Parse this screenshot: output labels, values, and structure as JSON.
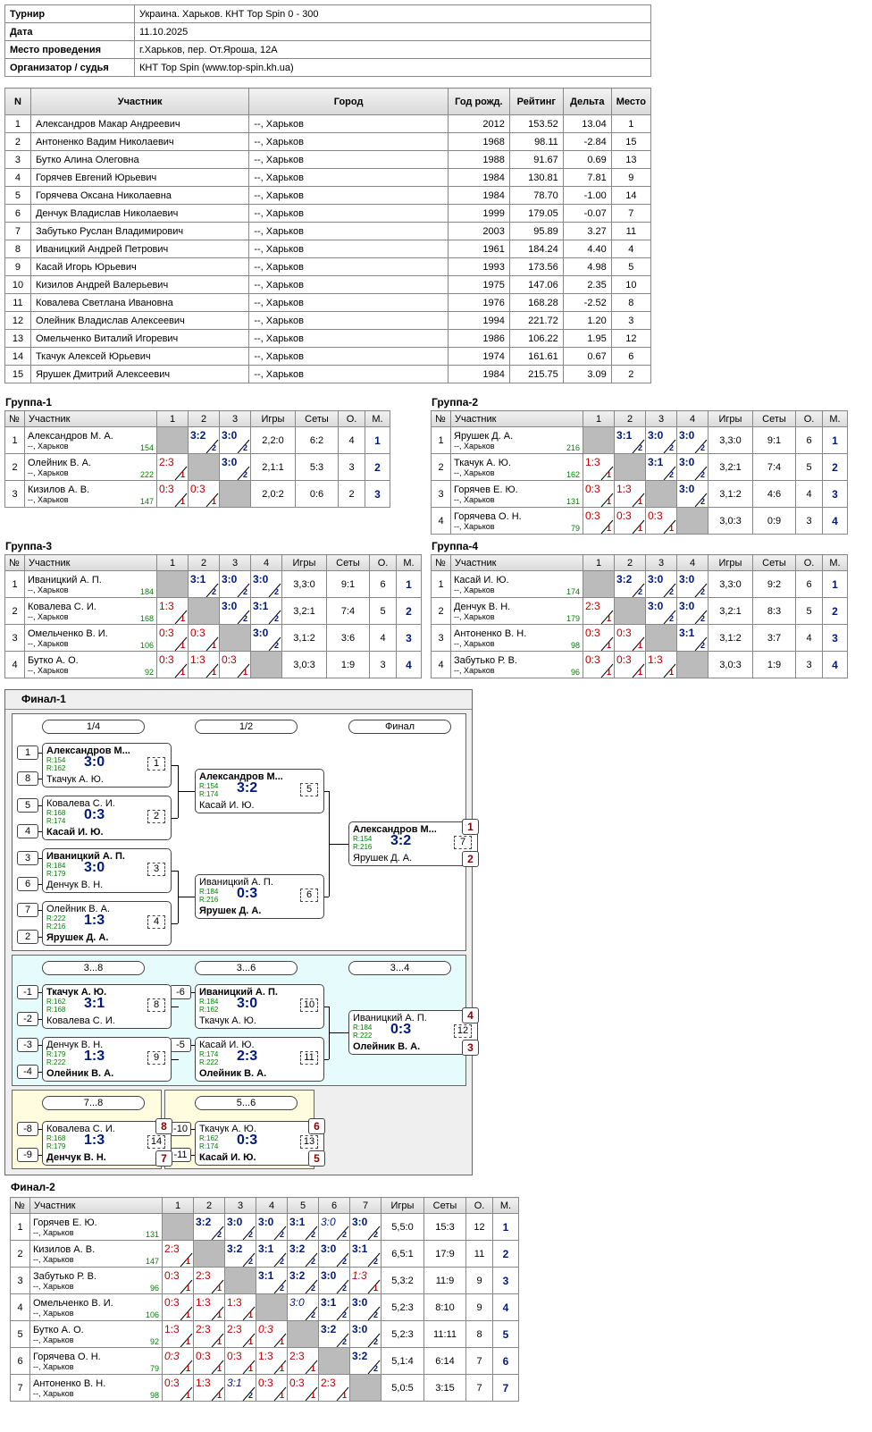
{
  "info": [
    {
      "k": "Турнир",
      "v": "Украина. Харьков. КНТ Top Spin 0 - 300"
    },
    {
      "k": "Дата",
      "v": "11.10.2025"
    },
    {
      "k": "Место проведения",
      "v": "г.Харьков, пер. От.Яроша, 12А"
    },
    {
      "k": "Организатор / судья",
      "v": "КНТ Top Spin (www.top-spin.kh.ua)"
    }
  ],
  "participants_header": [
    "N",
    "Участник",
    "Город",
    "Год рожд.",
    "Рейтинг",
    "Дельта",
    "Место"
  ],
  "participants": [
    [
      "1",
      "Александров Макар Андреевич",
      "--, Харьков",
      "2012",
      "153.52",
      "13.04",
      "1"
    ],
    [
      "2",
      "Антоненко Вадим Николаевич",
      "--, Харьков",
      "1968",
      "98.11",
      "-2.84",
      "15"
    ],
    [
      "3",
      "Бутко Алина Олеговна",
      "--, Харьков",
      "1988",
      "91.67",
      "0.69",
      "13"
    ],
    [
      "4",
      "Горячев Евгений Юрьевич",
      "--, Харьков",
      "1984",
      "130.81",
      "7.81",
      "9"
    ],
    [
      "5",
      "Горячева Оксана Николаевна",
      "--, Харьков",
      "1984",
      "78.70",
      "-1.00",
      "14"
    ],
    [
      "6",
      "Денчук Владислав Николаевич",
      "--, Харьков",
      "1999",
      "179.05",
      "-0.07",
      "7"
    ],
    [
      "7",
      "Забутько Руслан Владимирович",
      "--, Харьков",
      "2003",
      "95.89",
      "3.27",
      "11"
    ],
    [
      "8",
      "Иваницкий Андрей Петрович",
      "--, Харьков",
      "1961",
      "184.24",
      "4.40",
      "4"
    ],
    [
      "9",
      "Касай Игорь Юрьевич",
      "--, Харьков",
      "1993",
      "173.56",
      "4.98",
      "5"
    ],
    [
      "10",
      "Кизилов Андрей Валерьевич",
      "--, Харьков",
      "1975",
      "147.06",
      "2.35",
      "10"
    ],
    [
      "11",
      "Ковалева Светлана Ивановна",
      "--, Харьков",
      "1976",
      "168.28",
      "-2.52",
      "8"
    ],
    [
      "12",
      "Олейник Владислав Алексеевич",
      "--, Харьков",
      "1994",
      "221.72",
      "1.20",
      "3"
    ],
    [
      "13",
      "Омельченко Виталий Игоревич",
      "--, Харьков",
      "1986",
      "106.22",
      "1.95",
      "12"
    ],
    [
      "14",
      "Ткачук Алексей Юрьевич",
      "--, Харьков",
      "1974",
      "161.61",
      "0.67",
      "6"
    ],
    [
      "15",
      "Ярушек Дмитрий Алексеевич",
      "--, Харьков",
      "1984",
      "215.75",
      "3.09",
      "2"
    ]
  ],
  "group_header": {
    "n": "№",
    "p": "Участник",
    "games": "Игры",
    "sets": "Сеты",
    "o": "О.",
    "m": "М."
  },
  "groups": [
    {
      "title": "Группа-1",
      "players": [
        {
          "n": "1",
          "name": "Александров М. А.",
          "city": "--, Харьков",
          "rating": "154",
          "scores": [
            "x",
            "3:2/2",
            "3:0/2"
          ],
          "games": "2,2:0",
          "sets": "6:2",
          "o": "4",
          "m": "1"
        },
        {
          "n": "2",
          "name": "Олейник В. А.",
          "city": "--, Харьков",
          "rating": "222",
          "scores": [
            "2:3/1",
            "x",
            "3:0/2"
          ],
          "games": "2,1:1",
          "sets": "5:3",
          "o": "3",
          "m": "2"
        },
        {
          "n": "3",
          "name": "Кизилов А. В.",
          "city": "--, Харьков",
          "rating": "147",
          "scores": [
            "0:3/1",
            "0:3/1",
            "x"
          ],
          "games": "2,0:2",
          "sets": "0:6",
          "o": "2",
          "m": "3"
        }
      ]
    },
    {
      "title": "Группа-2",
      "players": [
        {
          "n": "1",
          "name": "Ярушек Д. А.",
          "city": "--, Харьков",
          "rating": "216",
          "scores": [
            "x",
            "3:1/2",
            "3:0/2",
            "3:0/2"
          ],
          "games": "3,3:0",
          "sets": "9:1",
          "o": "6",
          "m": "1"
        },
        {
          "n": "2",
          "name": "Ткачук А. Ю.",
          "city": "--, Харьков",
          "rating": "162",
          "scores": [
            "1:3/1",
            "x",
            "3:1/2",
            "3:0/2"
          ],
          "games": "3,2:1",
          "sets": "7:4",
          "o": "5",
          "m": "2"
        },
        {
          "n": "3",
          "name": "Горячев Е. Ю.",
          "city": "--, Харьков",
          "rating": "131",
          "scores": [
            "0:3/1",
            "1:3/1",
            "x",
            "3:0/2"
          ],
          "games": "3,1:2",
          "sets": "4:6",
          "o": "4",
          "m": "3"
        },
        {
          "n": "4",
          "name": "Горячева О. Н.",
          "city": "--, Харьков",
          "rating": "79",
          "scores": [
            "0:3/1",
            "0:3/1",
            "0:3/1",
            "x"
          ],
          "games": "3,0:3",
          "sets": "0:9",
          "o": "3",
          "m": "4"
        }
      ]
    },
    {
      "title": "Группа-3",
      "players": [
        {
          "n": "1",
          "name": "Иваницкий А. П.",
          "city": "--, Харьков",
          "rating": "184",
          "scores": [
            "x",
            "3:1/2",
            "3:0/2",
            "3:0/2"
          ],
          "games": "3,3:0",
          "sets": "9:1",
          "o": "6",
          "m": "1"
        },
        {
          "n": "2",
          "name": "Ковалева С. И.",
          "city": "--, Харьков",
          "rating": "168",
          "scores": [
            "1:3/1",
            "x",
            "3:0/2",
            "3:1/2"
          ],
          "games": "3,2:1",
          "sets": "7:4",
          "o": "5",
          "m": "2"
        },
        {
          "n": "3",
          "name": "Омельченко В. И.",
          "city": "--, Харьков",
          "rating": "106",
          "scores": [
            "0:3/1",
            "0:3/1",
            "x",
            "3:0/2"
          ],
          "games": "3,1:2",
          "sets": "3:6",
          "o": "4",
          "m": "3"
        },
        {
          "n": "4",
          "name": "Бутко А. О.",
          "city": "--, Харьков",
          "rating": "92",
          "scores": [
            "0:3/1",
            "1:3/1",
            "0:3/1",
            "x"
          ],
          "games": "3,0:3",
          "sets": "1:9",
          "o": "3",
          "m": "4"
        }
      ]
    },
    {
      "title": "Группа-4",
      "players": [
        {
          "n": "1",
          "name": "Касай И. Ю.",
          "city": "--, Харьков",
          "rating": "174",
          "scores": [
            "x",
            "3:2/2",
            "3:0/2",
            "3:0/2"
          ],
          "games": "3,3:0",
          "sets": "9:2",
          "o": "6",
          "m": "1"
        },
        {
          "n": "2",
          "name": "Денчук В. Н.",
          "city": "--, Харьков",
          "rating": "179",
          "scores": [
            "2:3/1",
            "x",
            "3:0/2",
            "3:0/2"
          ],
          "games": "3,2:1",
          "sets": "8:3",
          "o": "5",
          "m": "2"
        },
        {
          "n": "3",
          "name": "Антоненко В. Н.",
          "city": "--, Харьков",
          "rating": "98",
          "scores": [
            "0:3/1",
            "0:3/1",
            "x",
            "3:1/2"
          ],
          "games": "3,1:2",
          "sets": "3:7",
          "o": "4",
          "m": "3"
        },
        {
          "n": "4",
          "name": "Забутько Р. В.",
          "city": "--, Харьков",
          "rating": "96",
          "scores": [
            "0:3/1",
            "0:3/1",
            "1:3/1",
            "x"
          ],
          "games": "3,0:3",
          "sets": "1:9",
          "o": "3",
          "m": "4"
        }
      ]
    }
  ],
  "final1": {
    "title": "Финал-1",
    "rounds": [
      "1/4",
      "1/2",
      "Финал",
      "3...8",
      "3...6",
      "3...4",
      "7...8",
      "5...6"
    ],
    "seeds": [
      "1",
      "8",
      "5",
      "4",
      "3",
      "6",
      "7",
      "2",
      "-1",
      "-2",
      "-3",
      "-4",
      "-6",
      "-5",
      "-8",
      "-9",
      "-10",
      "-11"
    ],
    "losers": [
      "-8",
      "-8",
      "-9",
      "-9",
      "-11",
      "-10",
      "-14",
      "-14",
      "-13",
      "-13"
    ],
    "matches": [
      {
        "p1": "Александров М...",
        "r1": "R:154",
        "r2": "R:162",
        "p2": "Ткачук А. Ю.",
        "score": "3:0",
        "num": "1",
        "w": 1
      },
      {
        "p1": "Ковалева С. И.",
        "r1": "R:168",
        "r2": "R:174",
        "p2": "Касай И. Ю.",
        "score": "0:3",
        "num": "2",
        "w": 2
      },
      {
        "p1": "Иваницкий А. П.",
        "r1": "R:184",
        "r2": "R:179",
        "p2": "Денчук В. Н.",
        "score": "3:0",
        "num": "3",
        "w": 1
      },
      {
        "p1": "Олейник В. А.",
        "r1": "R:222",
        "r2": "R:216",
        "p2": "Ярушек Д. А.",
        "score": "1:3",
        "num": "4",
        "w": 2
      },
      {
        "p1": "Александров М...",
        "r1": "R:154",
        "r2": "R:174",
        "p2": "Касай И. Ю.",
        "score": "3:2",
        "num": "5",
        "w": 1
      },
      {
        "p1": "Иваницкий А. П.",
        "r1": "R:184",
        "r2": "R:216",
        "p2": "Ярушек Д. А.",
        "score": "0:3",
        "num": "6",
        "w": 2
      },
      {
        "p1": "Александров М...",
        "r1": "R:154",
        "r2": "R:216",
        "p2": "Ярушек Д. А.",
        "score": "3:2",
        "num": "7",
        "w": 1,
        "pl1": "1",
        "pl2": "2"
      },
      {
        "p1": "Ткачук А. Ю.",
        "r1": "R:162",
        "r2": "R:168",
        "p2": "Ковалева С. И.",
        "score": "3:1",
        "num": "8",
        "w": 1
      },
      {
        "p1": "Денчук В. Н.",
        "r1": "R:179",
        "r2": "R:222",
        "p2": "Олейник В. А.",
        "score": "1:3",
        "num": "9",
        "w": 2
      },
      {
        "p1": "Иваницкий А. П.",
        "r1": "R:184",
        "r2": "R:162",
        "p2": "Ткачук А. Ю.",
        "score": "3:0",
        "num": "10",
        "w": 1
      },
      {
        "p1": "Касай И. Ю.",
        "r1": "R:174",
        "r2": "R:222",
        "p2": "Олейник В. А.",
        "score": "2:3",
        "num": "11",
        "w": 2
      },
      {
        "p1": "Иваницкий А. П.",
        "r1": "R:184",
        "r2": "R:222",
        "p2": "Олейник В. А.",
        "score": "0:3",
        "num": "12",
        "w": 2,
        "pl1": "4",
        "pl2": "3"
      },
      {
        "p1": "Ковалева С. И.",
        "r1": "R:168",
        "r2": "R:179",
        "p2": "Денчук В. Н.",
        "score": "1:3",
        "num": "14",
        "w": 2,
        "pl1": "8",
        "pl2": "7"
      },
      {
        "p1": "Ткачук А. Ю.",
        "r1": "R:162",
        "r2": "R:174",
        "p2": "Касай И. Ю.",
        "score": "0:3",
        "num": "13",
        "w": 2,
        "pl1": "6",
        "pl2": "5"
      }
    ]
  },
  "final2": {
    "title": "Финал-2",
    "players": [
      {
        "n": "1",
        "name": "Горячев Е. Ю.",
        "city": "--, Харьков",
        "rating": "131",
        "scores": [
          "x",
          "3:2/2",
          "3:0/2",
          "3:0/2",
          "3:1/2",
          "3:0/2i",
          "3:0/2"
        ],
        "games": "5,5:0",
        "sets": "15:3",
        "o": "12",
        "m": "1"
      },
      {
        "n": "2",
        "name": "Кизилов А. В.",
        "city": "--, Харьков",
        "rating": "147",
        "scores": [
          "2:3/1",
          "x",
          "3:2/2",
          "3:1/2",
          "3:2/2",
          "3:0/2",
          "3:1/2"
        ],
        "games": "6,5:1",
        "sets": "17:9",
        "o": "11",
        "m": "2"
      },
      {
        "n": "3",
        "name": "Забутько Р. В.",
        "city": "--, Харьков",
        "rating": "96",
        "scores": [
          "0:3/1",
          "2:3/1",
          "x",
          "3:1/2",
          "3:2/2",
          "3:0/2",
          "1:3/1i"
        ],
        "games": "5,3:2",
        "sets": "11:9",
        "o": "9",
        "m": "3"
      },
      {
        "n": "4",
        "name": "Омельченко В. И.",
        "city": "--, Харьков",
        "rating": "106",
        "scores": [
          "0:3/1",
          "1:3/1",
          "1:3/1",
          "x",
          "3:0/2i",
          "3:1/2",
          "3:0/2"
        ],
        "games": "5,2:3",
        "sets": "8:10",
        "o": "9",
        "m": "4"
      },
      {
        "n": "5",
        "name": "Бутко А. О.",
        "city": "--, Харьков",
        "rating": "92",
        "scores": [
          "1:3/1",
          "2:3/1",
          "2:3/1",
          "0:3/1i",
          "x",
          "3:2/2",
          "3:0/2"
        ],
        "games": "5,2:3",
        "sets": "11:11",
        "o": "8",
        "m": "5"
      },
      {
        "n": "6",
        "name": "Горячева О. Н.",
        "city": "--, Харьков",
        "rating": "79",
        "scores": [
          "0:3/1i",
          "0:3/1",
          "0:3/1",
          "1:3/1",
          "2:3/1",
          "x",
          "3:2/2"
        ],
        "games": "5,1:4",
        "sets": "6:14",
        "o": "7",
        "m": "6"
      },
      {
        "n": "7",
        "name": "Антоненко В. Н.",
        "city": "--, Харьков",
        "rating": "98",
        "scores": [
          "0:3/1",
          "1:3/1",
          "3:1/2i",
          "0:3/1",
          "0:3/1",
          "2:3/1",
          "x"
        ],
        "games": "5,0:5",
        "sets": "3:15",
        "o": "7",
        "m": "7"
      }
    ]
  },
  "colors": {
    "win": "#001a80",
    "loss": "#c00000",
    "rating": "#008000",
    "consolation": "#e6fbfc",
    "classification": "#fffce0",
    "panel": "#efefef"
  }
}
